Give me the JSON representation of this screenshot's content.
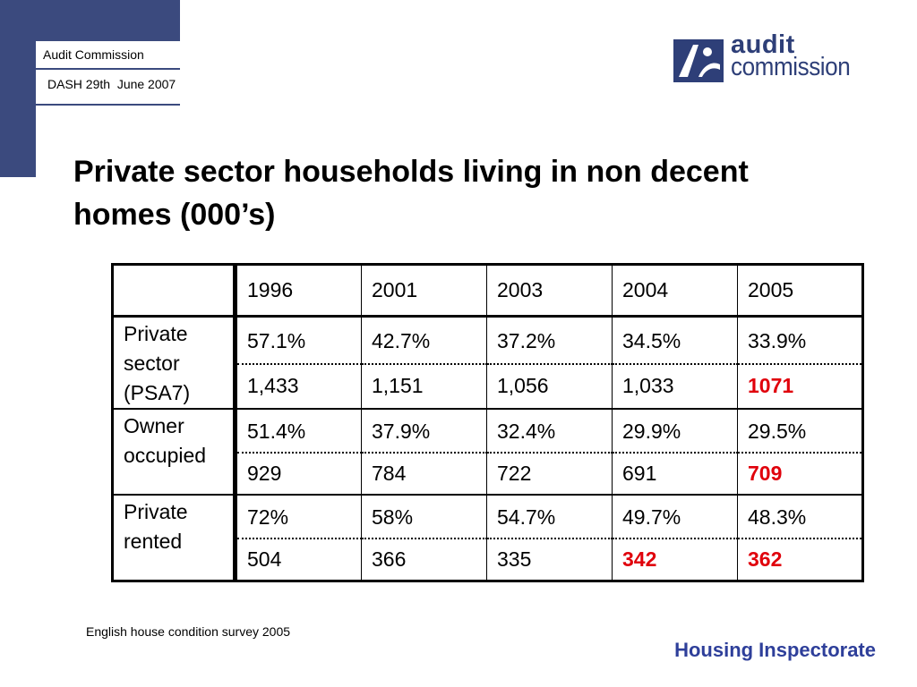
{
  "header": {
    "org_name": "Audit Commission",
    "event": "DASH 29th  June 2007"
  },
  "logo": {
    "line1": "audit",
    "line2": "commission",
    "color": "#2e3f78"
  },
  "title": "Private sector households living in non decent homes (000’s)",
  "table": {
    "years": [
      "1996",
      "2001",
      "2003",
      "2004",
      "2005"
    ],
    "rows": [
      {
        "label": "Private sector (PSA7)",
        "percent": [
          "57.1%",
          "42.7%",
          "37.2%",
          "34.5%",
          "33.9%"
        ],
        "count": [
          "1,433",
          "1,151",
          "1,056",
          "1,033",
          "1071"
        ]
      },
      {
        "label": "Owner occupied",
        "percent": [
          "51.4%",
          "37.9%",
          "32.4%",
          "29.9%",
          "29.5%"
        ],
        "count": [
          "929",
          "784",
          "722",
          "691",
          "709"
        ]
      },
      {
        "label": "Private rented",
        "percent": [
          "72%",
          "58%",
          "54.7%",
          "49.7%",
          "48.3%"
        ],
        "count": [
          "504",
          "366",
          "335",
          "342",
          "362"
        ]
      }
    ],
    "highlight_color": "#e0000b"
  },
  "source": "English house condition survey 2005",
  "footer": "Housing Inspectorate",
  "colors": {
    "brand_navy": "#3b4a7e",
    "footer_blue": "#2e3f9a"
  }
}
